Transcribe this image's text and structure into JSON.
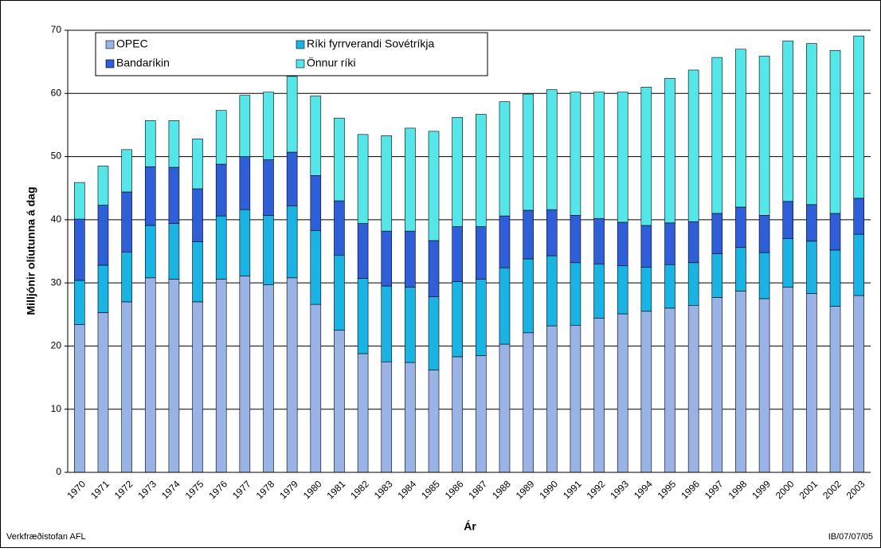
{
  "chart_data": {
    "type": "stacked-bar",
    "y_label": "Milljónir olíutunna á dag",
    "x_label": "Ár",
    "footer_left": "Verkfræðistofan AFL",
    "footer_right": "IB/07/07/05",
    "categories": [
      "1970",
      "1971",
      "1972",
      "1973",
      "1974",
      "1975",
      "1976",
      "1977",
      "1978",
      "1979",
      "1980",
      "1981",
      "1982",
      "1983",
      "1984",
      "1985",
      "1986",
      "1987",
      "1988",
      "1989",
      "1990",
      "1991",
      "1992",
      "1993",
      "1994",
      "1995",
      "1996",
      "1997",
      "1998",
      "1999",
      "2000",
      "2001",
      "2002",
      "2003"
    ],
    "series": [
      {
        "name": "OPEC",
        "color": "#99b3e6",
        "values": [
          23.4,
          25.3,
          27.0,
          30.8,
          30.6,
          27.0,
          30.6,
          31.1,
          29.7,
          30.8,
          26.6,
          22.5,
          18.8,
          17.5,
          17.4,
          16.2,
          18.3,
          18.5,
          20.3,
          22.1,
          23.2,
          23.3,
          24.4,
          25.1,
          25.5,
          26.0,
          26.4,
          27.7,
          28.7,
          27.5,
          29.3,
          28.3,
          26.3,
          28.0
        ]
      },
      {
        "name": "Ríki fyrrverandi Sovétríkja",
        "color": "#19b4e3",
        "values": [
          7.0,
          7.5,
          7.9,
          8.3,
          8.8,
          9.5,
          10.0,
          10.5,
          11.0,
          11.4,
          11.7,
          11.9,
          11.9,
          12.0,
          11.9,
          11.6,
          11.9,
          12.1,
          12.1,
          11.7,
          11.1,
          9.9,
          8.6,
          7.6,
          7.0,
          6.9,
          6.8,
          6.9,
          6.9,
          7.3,
          7.7,
          8.3,
          8.9,
          9.7
        ]
      },
      {
        "name": "Bandaríkin",
        "color": "#2e5fd9",
        "values": [
          9.7,
          9.5,
          9.5,
          9.3,
          8.9,
          8.4,
          8.2,
          8.4,
          8.8,
          8.5,
          8.7,
          8.6,
          8.7,
          8.7,
          8.9,
          8.9,
          8.7,
          8.3,
          8.2,
          7.7,
          7.3,
          7.5,
          7.2,
          6.9,
          6.6,
          6.6,
          6.5,
          6.4,
          6.4,
          5.9,
          5.9,
          5.8,
          5.8,
          5.7
        ]
      },
      {
        "name": "Önnur ríki",
        "color": "#55e6ea",
        "values": [
          5.8,
          6.2,
          6.7,
          7.3,
          7.4,
          7.9,
          8.5,
          9.7,
          10.7,
          12.0,
          12.6,
          13.1,
          14.1,
          15.1,
          16.3,
          17.3,
          17.3,
          17.8,
          18.1,
          18.4,
          19.0,
          19.5,
          20.0,
          20.6,
          21.9,
          22.9,
          24.0,
          24.7,
          25.0,
          25.2,
          25.4,
          25.5,
          25.8,
          25.7
        ]
      }
    ],
    "ylim": [
      0,
      70
    ],
    "yticks": [
      0,
      10,
      20,
      30,
      40,
      50,
      60,
      70
    ],
    "grid": true
  }
}
